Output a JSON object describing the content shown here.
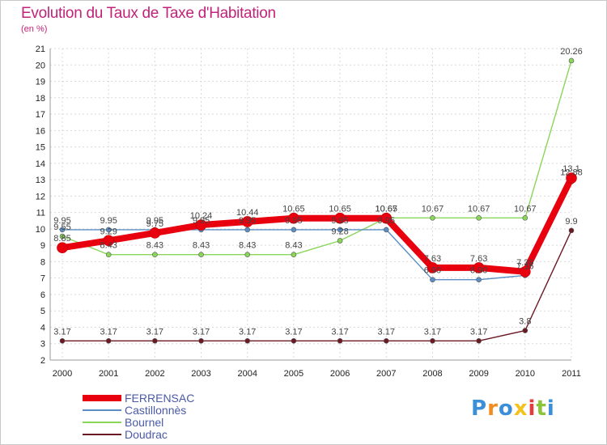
{
  "chart_data": {
    "type": "line",
    "title": "Evolution du Taux de Taxe d'Habitation",
    "subtitle": "(en %)",
    "categories": [
      "2000",
      "2001",
      "2002",
      "2003",
      "2004",
      "2005",
      "2006",
      "2007",
      "2008",
      "2009",
      "2010",
      "2011"
    ],
    "ylim": [
      2,
      21
    ],
    "yticks": [
      2,
      3,
      4,
      5,
      6,
      7,
      8,
      9,
      10,
      11,
      12,
      13,
      14,
      15,
      16,
      17,
      18,
      19,
      20,
      21
    ],
    "series": [
      {
        "name": "FERRENSAC",
        "color": "#e8000e",
        "values": [
          8.85,
          9.29,
          9.75,
          10.24,
          10.44,
          10.65,
          10.65,
          10.65,
          7.63,
          7.63,
          7.39,
          13.1
        ],
        "labels": [
          "8.85",
          "9.29",
          "9.75",
          "10.24",
          "10.44",
          "10.65",
          "10.65",
          "10.65",
          "7.63",
          "7.63",
          "7.39",
          "13.1"
        ]
      },
      {
        "name": "Castillonnès",
        "color": "#5b8ec4",
        "values": [
          9.95,
          9.95,
          9.95,
          9.95,
          9.95,
          9.95,
          9.95,
          9.95,
          6.9,
          6.9,
          7.16,
          12.88
        ],
        "labels": [
          "9.95",
          "9.95",
          "9.95",
          "9.95",
          "9.95",
          "9.95",
          "9.95",
          "9.95",
          "6.90",
          "6.90",
          "7.16",
          "12.88"
        ]
      },
      {
        "name": "Bournel",
        "color": "#8ad65a",
        "values": [
          9.55,
          8.43,
          8.43,
          8.43,
          8.43,
          8.43,
          9.28,
          10.67,
          10.67,
          10.67,
          10.67,
          20.26
        ],
        "labels": [
          "9.55",
          "8.43",
          "8.43",
          "8.43",
          "8.43",
          "8.43",
          "9.28",
          "10.67",
          "10.67",
          "10.67",
          "10.67",
          "20.26"
        ]
      },
      {
        "name": "Doudrac",
        "color": "#6b1a24",
        "values": [
          3.17,
          3.17,
          3.17,
          3.17,
          3.17,
          3.17,
          3.17,
          3.17,
          3.17,
          3.17,
          3.8,
          9.9
        ],
        "labels": [
          "3.17",
          "3.17",
          "3.17",
          "3.17",
          "3.17",
          "3.17",
          "3.17",
          "3.17",
          "3.17",
          "3.17",
          "3.8",
          "9.9"
        ]
      }
    ]
  },
  "logo": {
    "letters": [
      "P",
      "r",
      "o",
      "x",
      "i",
      "t",
      "i"
    ],
    "colors": [
      "#3a8fd8",
      "#f28c1e",
      "#3a8fd8",
      "#f2c21e",
      "#e83a3a",
      "#8ac43a",
      "#3a8fd8"
    ]
  }
}
